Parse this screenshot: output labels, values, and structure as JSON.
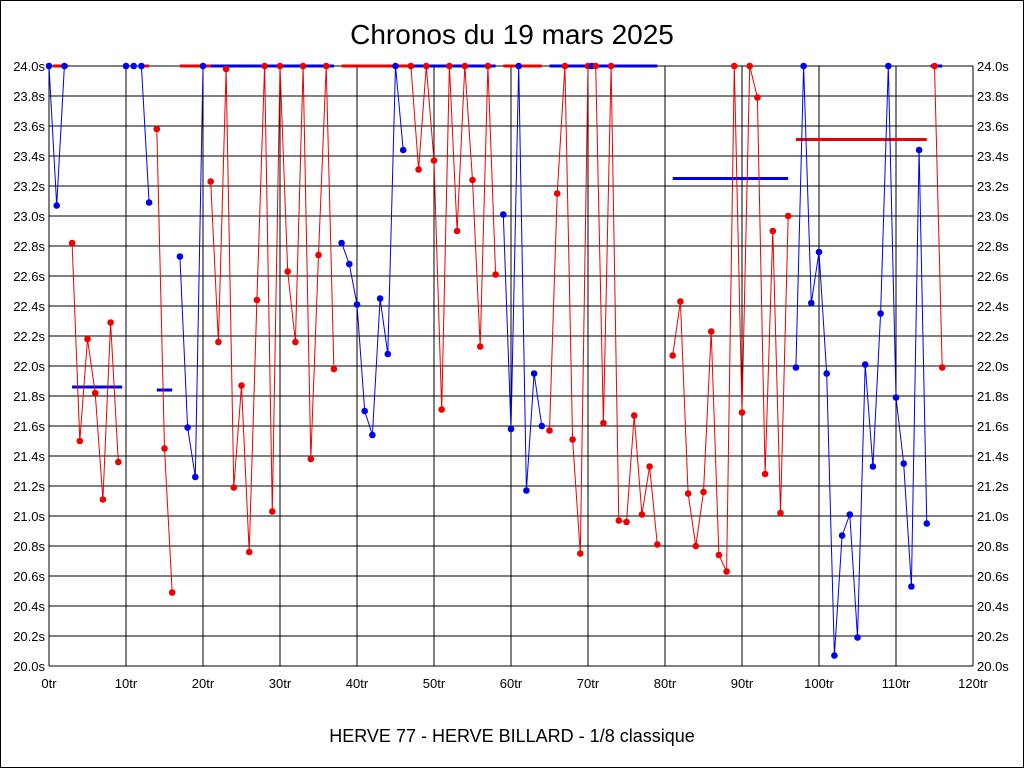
{
  "chart_data": {
    "type": "line",
    "title": "Chronos du 19 mars 2025",
    "caption": "HERVE 77 - HERVE BILLARD - 1/8 classique",
    "x_ticks": [
      "0tr",
      "10tr",
      "20tr",
      "30tr",
      "40tr",
      "50tr",
      "60tr",
      "70tr",
      "80tr",
      "90tr",
      "100tr",
      "110tr",
      "120tr"
    ],
    "y_ticks": [
      "20.0s",
      "20.2s",
      "20.4s",
      "20.6s",
      "20.8s",
      "21.0s",
      "21.2s",
      "21.4s",
      "21.6s",
      "21.8s",
      "22.0s",
      "22.2s",
      "22.4s",
      "22.6s",
      "22.8s",
      "23.0s",
      "23.2s",
      "23.4s",
      "23.6s",
      "23.8s",
      "24.0s"
    ],
    "xlim": [
      0,
      120
    ],
    "ylim": [
      20.0,
      24.0
    ],
    "grid": true,
    "colors": {
      "blue": "#0000ee",
      "red": "#ee0000"
    },
    "series": [
      {
        "color": "blue",
        "points": [
          [
            0,
            24.0
          ],
          [
            1,
            23.07
          ],
          [
            2,
            24.0
          ]
        ]
      },
      {
        "color": "red",
        "points": [
          [
            3,
            22.82
          ],
          [
            4,
            21.5
          ],
          [
            5,
            22.18
          ],
          [
            6,
            21.82
          ],
          [
            7,
            21.11
          ],
          [
            8,
            22.29
          ],
          [
            9,
            21.36
          ]
        ]
      },
      {
        "color": "blue",
        "points": [
          [
            10,
            24.0
          ],
          [
            11,
            24.0
          ],
          [
            12,
            24.0
          ],
          [
            13,
            23.09
          ]
        ]
      },
      {
        "color": "red",
        "points": [
          [
            14,
            23.58
          ],
          [
            15,
            21.45
          ],
          [
            16,
            20.49
          ]
        ]
      },
      {
        "color": "blue",
        "points": [
          [
            17,
            22.73
          ],
          [
            18,
            21.59
          ],
          [
            19,
            21.26
          ],
          [
            20,
            24.0
          ]
        ]
      },
      {
        "color": "red",
        "points": [
          [
            21,
            23.23
          ],
          [
            22,
            22.16
          ],
          [
            23,
            23.98
          ],
          [
            24,
            21.19
          ],
          [
            25,
            21.87
          ],
          [
            26,
            20.76
          ],
          [
            27,
            22.44
          ],
          [
            28,
            24.0
          ],
          [
            29,
            21.03
          ],
          [
            30,
            24.0
          ],
          [
            31,
            22.63
          ],
          [
            32,
            22.16
          ],
          [
            33,
            24.0
          ],
          [
            34,
            21.38
          ],
          [
            35,
            22.74
          ],
          [
            36,
            24.0
          ],
          [
            37,
            21.98
          ]
        ]
      },
      {
        "color": "blue",
        "points": [
          [
            38,
            22.82
          ],
          [
            39,
            22.68
          ],
          [
            40,
            22.41
          ],
          [
            41,
            21.7
          ],
          [
            42,
            21.54
          ],
          [
            43,
            22.45
          ],
          [
            44,
            22.08
          ],
          [
            45,
            24.0
          ],
          [
            46,
            23.44
          ]
        ]
      },
      {
        "color": "red",
        "points": [
          [
            47,
            24.0
          ],
          [
            48,
            23.31
          ],
          [
            49,
            24.0
          ],
          [
            50,
            23.37
          ],
          [
            51,
            21.71
          ],
          [
            52,
            24.0
          ],
          [
            53,
            22.9
          ],
          [
            54,
            24.0
          ],
          [
            55,
            23.24
          ],
          [
            56,
            22.13
          ],
          [
            57,
            24.0
          ],
          [
            58,
            22.61
          ]
        ]
      },
      {
        "color": "blue",
        "points": [
          [
            59,
            23.01
          ],
          [
            60,
            21.58
          ],
          [
            61,
            24.0
          ],
          [
            62,
            21.17
          ],
          [
            63,
            21.95
          ],
          [
            64,
            21.6
          ]
        ]
      },
      {
        "color": "red",
        "points": [
          [
            65,
            21.57
          ],
          [
            66,
            23.15
          ],
          [
            67,
            24.0
          ],
          [
            68,
            21.51
          ],
          [
            69,
            20.75
          ],
          [
            70,
            24.0
          ]
        ]
      },
      {
        "color": "blue",
        "points": [
          [
            70.5,
            24.0
          ]
        ]
      },
      {
        "color": "red",
        "points": [
          [
            71,
            24.0
          ],
          [
            72,
            21.62
          ],
          [
            73,
            24.0
          ],
          [
            74,
            20.97
          ],
          [
            75,
            20.96
          ],
          [
            76,
            21.67
          ],
          [
            77,
            21.01
          ],
          [
            78,
            21.33
          ],
          [
            79,
            20.81
          ]
        ]
      },
      {
        "color": "red",
        "points": [
          [
            81,
            22.07
          ],
          [
            82,
            22.43
          ],
          [
            83,
            21.15
          ],
          [
            84,
            20.8
          ],
          [
            85,
            21.16
          ],
          [
            86,
            22.23
          ],
          [
            87,
            20.74
          ],
          [
            88,
            20.63
          ],
          [
            89,
            24.0
          ],
          [
            90,
            21.69
          ],
          [
            91,
            24.0
          ],
          [
            92,
            23.79
          ],
          [
            93,
            21.28
          ],
          [
            94,
            22.9
          ],
          [
            95,
            21.02
          ],
          [
            96,
            23.0
          ]
        ]
      },
      {
        "color": "blue",
        "points": [
          [
            97,
            21.99
          ],
          [
            98,
            24.0
          ],
          [
            99,
            22.42
          ],
          [
            100,
            22.76
          ],
          [
            101,
            21.95
          ],
          [
            102,
            20.07
          ],
          [
            103,
            20.87
          ],
          [
            104,
            21.01
          ],
          [
            105,
            20.19
          ],
          [
            106,
            22.01
          ],
          [
            107,
            21.33
          ],
          [
            108,
            22.35
          ],
          [
            109,
            24.0
          ],
          [
            110,
            21.79
          ],
          [
            111,
            21.35
          ],
          [
            112,
            20.53
          ],
          [
            113,
            23.44
          ],
          [
            114,
            20.95
          ]
        ]
      },
      {
        "color": "red",
        "points": [
          [
            115,
            24.0
          ],
          [
            116,
            21.99
          ]
        ]
      }
    ],
    "segments": [
      {
        "color": "red",
        "x": [
          0.5,
          2.5
        ],
        "y": 24.0
      },
      {
        "color": "blue",
        "x": [
          3,
          9.5
        ],
        "y": 21.86
      },
      {
        "color": "red",
        "x": [
          12,
          13
        ],
        "y": 24.0
      },
      {
        "color": "blue",
        "x": [
          14,
          16
        ],
        "y": 21.84
      },
      {
        "color": "red",
        "x": [
          17,
          21
        ],
        "y": 24.0
      },
      {
        "color": "blue",
        "x": [
          21,
          37
        ],
        "y": 24.0
      },
      {
        "color": "red",
        "x": [
          38,
          47
        ],
        "y": 24.0
      },
      {
        "color": "blue",
        "x": [
          47,
          58
        ],
        "y": 24.0
      },
      {
        "color": "red",
        "x": [
          59,
          64
        ],
        "y": 24.0
      },
      {
        "color": "blue",
        "x": [
          65,
          79
        ],
        "y": 24.0
      },
      {
        "color": "blue",
        "x": [
          81,
          96
        ],
        "y": 23.25
      },
      {
        "color": "red",
        "x": [
          97,
          114
        ],
        "y": 23.51
      },
      {
        "color": "blue",
        "x": [
          114.5,
          116
        ],
        "y": 24.0
      }
    ]
  }
}
